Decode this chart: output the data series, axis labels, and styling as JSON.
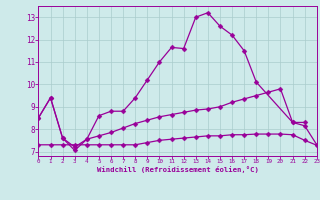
{
  "background_color": "#ceeaea",
  "grid_color": "#aacccc",
  "line_color": "#990099",
  "xlabel": "Windchill (Refroidissement éolien,°C)",
  "ylabel_ticks": [
    7,
    8,
    9,
    10,
    11,
    12,
    13
  ],
  "xlabel_ticks": [
    0,
    1,
    2,
    3,
    4,
    5,
    6,
    7,
    8,
    9,
    10,
    11,
    12,
    13,
    14,
    15,
    16,
    17,
    18,
    19,
    20,
    21,
    22,
    23
  ],
  "xlim": [
    0,
    23
  ],
  "ylim": [
    6.8,
    13.5
  ],
  "s0x": [
    0,
    1,
    2,
    3,
    4,
    5,
    6,
    7,
    8,
    9,
    10,
    11,
    12,
    13,
    14,
    15,
    16,
    17,
    18,
    21,
    22
  ],
  "s0y": [
    8.5,
    9.4,
    7.6,
    7.2,
    7.55,
    8.6,
    8.8,
    8.8,
    9.4,
    10.2,
    11.0,
    11.65,
    11.6,
    13.0,
    13.2,
    12.6,
    12.2,
    11.5,
    10.1,
    8.3,
    8.3
  ],
  "s1x": [
    0,
    1,
    2,
    3,
    4,
    5,
    6,
    7,
    8,
    9,
    10,
    11,
    12,
    13,
    14,
    15,
    16,
    17,
    18,
    19,
    20,
    21,
    22,
    23
  ],
  "s1y": [
    8.5,
    9.4,
    7.6,
    7.05,
    7.55,
    7.7,
    7.85,
    8.05,
    8.25,
    8.4,
    8.55,
    8.65,
    8.75,
    8.85,
    8.9,
    9.0,
    9.2,
    9.35,
    9.5,
    9.65,
    9.8,
    8.3,
    8.15,
    7.3
  ],
  "s2x": [
    0,
    1,
    2,
    3,
    4,
    5,
    6,
    7,
    8,
    9,
    10,
    11,
    12,
    13,
    14,
    15,
    16,
    17,
    18,
    19,
    20,
    21,
    22,
    23
  ],
  "s2y": [
    7.3,
    7.3,
    7.3,
    7.3,
    7.3,
    7.3,
    7.3,
    7.3,
    7.3,
    7.4,
    7.5,
    7.55,
    7.6,
    7.65,
    7.7,
    7.7,
    7.75,
    7.75,
    7.78,
    7.78,
    7.78,
    7.75,
    7.5,
    7.28
  ],
  "markersize": 2.5,
  "linewidth": 0.9
}
